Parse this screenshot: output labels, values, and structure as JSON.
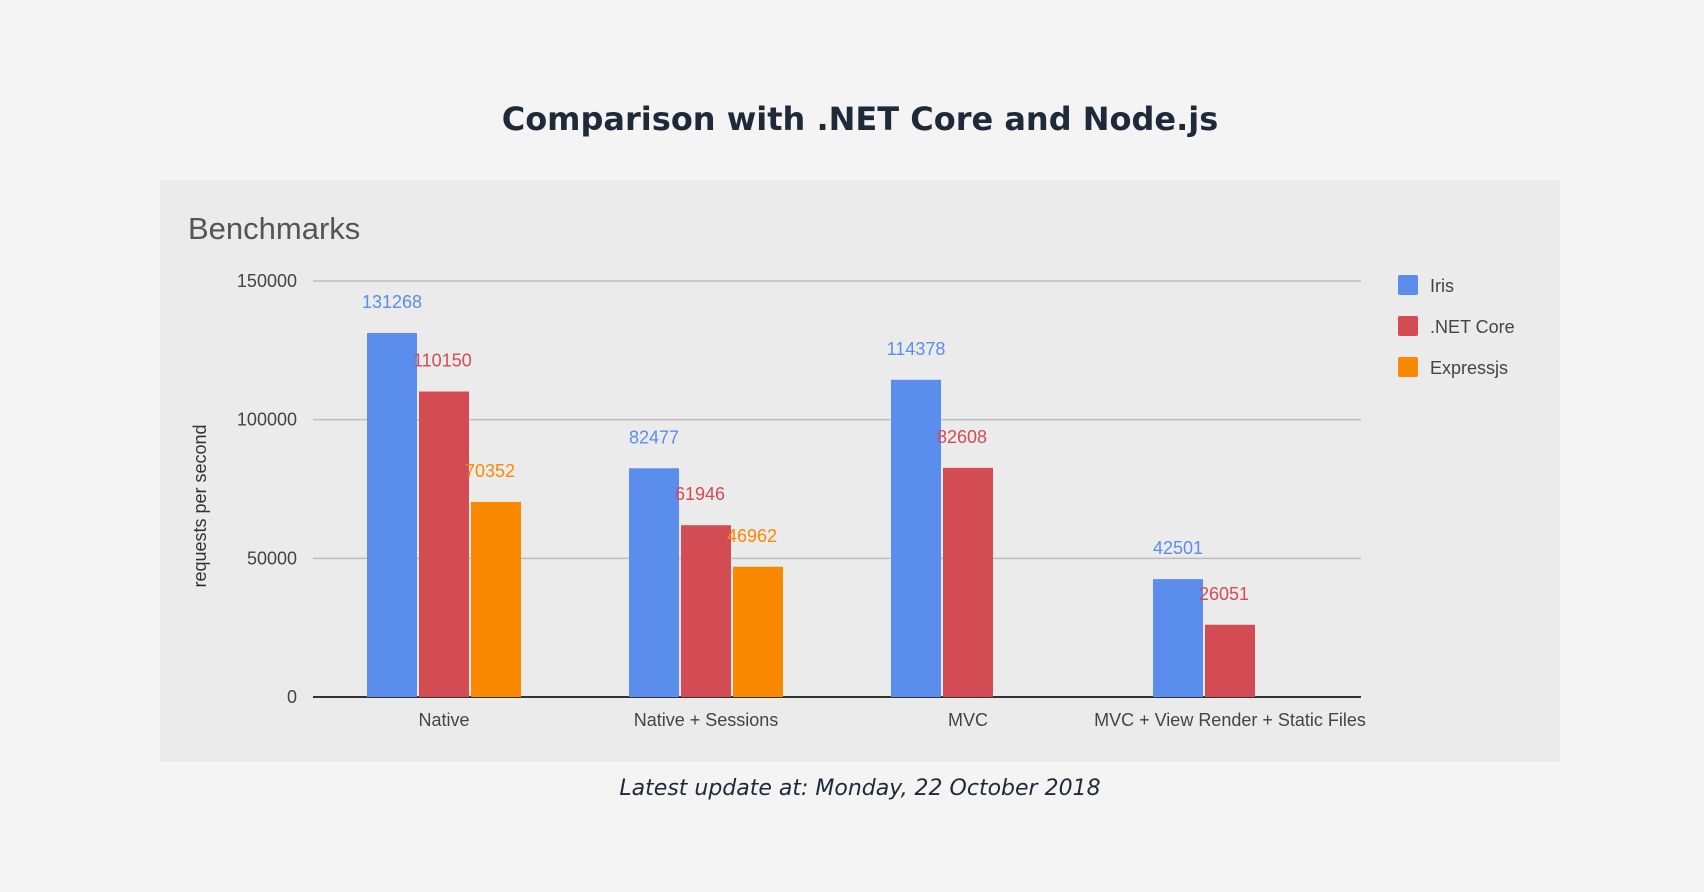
{
  "page": {
    "title": "Comparison with .NET Core and Node.js",
    "footnote": "Latest update at: Monday, 22 October 2018"
  },
  "chart_data": {
    "type": "bar",
    "title": "Benchmarks",
    "xlabel": "",
    "ylabel": "requests per second",
    "ylim": [
      0,
      150000
    ],
    "yticks": [
      0,
      50000,
      100000,
      150000
    ],
    "grid": true,
    "legend_position": "right",
    "categories": [
      "Native",
      "Native + Sessions",
      "MVC",
      "MVC + View Render + Static Files"
    ],
    "series": [
      {
        "name": "Iris",
        "color": "#5b8ded",
        "values": [
          131268,
          82477,
          114378,
          42501
        ]
      },
      {
        "name": ".NET Core",
        "color": "#d34c53",
        "values": [
          110150,
          61946,
          82608,
          26051
        ]
      },
      {
        "name": "Expressjs",
        "color": "#fb8900",
        "values": [
          70352,
          46962,
          null,
          null
        ]
      }
    ]
  }
}
